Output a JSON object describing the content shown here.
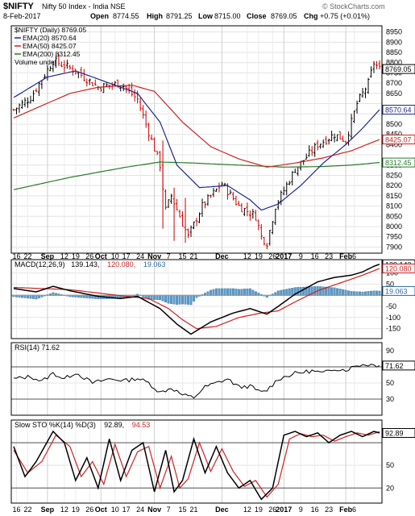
{
  "header": {
    "symbol": "$NIFTY",
    "description": "Nifty 50 Index - India  NSE",
    "date": "8-Feb-2017",
    "open_label": "Open",
    "open": "8774.55",
    "high_label": "High",
    "high": "8791.25",
    "low_label": "Low",
    "low": "8715.00",
    "close_label": "Close",
    "close": "8769.05",
    "chg_label": "Chg",
    "chg": "+0.75 (+0.01%)",
    "watermark": "© StockCharts.com",
    "up_color": "#000000",
    "down_color": "#cc0000"
  },
  "chart_data": [
    {
      "type": "candlestick",
      "panel": "price",
      "legend": [
        {
          "text": "$NIFTY (Daily) 8769.05",
          "color": "#000000"
        },
        {
          "text": "EMA(20) 8570.64",
          "color": "#1f2a8c"
        },
        {
          "text": "EMA(50) 8425.07",
          "color": "#cc2222"
        },
        {
          "text": "EMA(200) 8312.45",
          "color": "#2a7a2a"
        },
        {
          "text": "Volume undef",
          "color": "#000000"
        }
      ],
      "ylim": [
        7870,
        8980
      ],
      "yticks": [
        7900,
        7950,
        8000,
        8050,
        8100,
        8150,
        8200,
        8250,
        8300,
        8350,
        8400,
        8450,
        8500,
        8550,
        8600,
        8650,
        8700,
        8750,
        8800,
        8850,
        8900,
        8950
      ],
      "ytick_labels": [
        "7900",
        "7950",
        "8000",
        "8050",
        "8100",
        "8150",
        "8200",
        "8250",
        "8300",
        "",
        "8400",
        "8450",
        "8500",
        "",
        "",
        "8650",
        "8700",
        "8750",
        "8800",
        "8850",
        "8900",
        "8950"
      ],
      "last_value_tags": [
        {
          "value": 8769.05,
          "text": "8769.05",
          "color": "#000000"
        },
        {
          "value": 8570.64,
          "text": "8570.64",
          "color": "#1f2a8c"
        },
        {
          "value": 8425.07,
          "text": "8425.07",
          "color": "#cc2222"
        },
        {
          "value": 8312.45,
          "text": "8312.45",
          "color": "#2a7a2a"
        }
      ],
      "ohlc_anchors": [
        [
          0,
          8570
        ],
        [
          6,
          8630
        ],
        [
          14,
          8810
        ],
        [
          22,
          8760
        ],
        [
          30,
          8680
        ],
        [
          38,
          8700
        ],
        [
          44,
          8620
        ],
        [
          52,
          8300
        ],
        [
          54,
          8080
        ],
        [
          56,
          8150
        ],
        [
          62,
          7950
        ],
        [
          67,
          8100
        ],
        [
          74,
          8210
        ],
        [
          80,
          8100
        ],
        [
          86,
          8050
        ],
        [
          88,
          7950
        ],
        [
          90,
          7920
        ],
        [
          93,
          8100
        ],
        [
          100,
          8280
        ],
        [
          108,
          8400
        ],
        [
          114,
          8450
        ],
        [
          118,
          8420
        ],
        [
          122,
          8600
        ],
        [
          126,
          8700
        ],
        [
          128,
          8800
        ],
        [
          130,
          8769
        ]
      ],
      "ema20_anchors": [
        [
          0,
          8630
        ],
        [
          12,
          8730
        ],
        [
          22,
          8760
        ],
        [
          34,
          8700
        ],
        [
          44,
          8650
        ],
        [
          52,
          8510
        ],
        [
          58,
          8300
        ],
        [
          66,
          8190
        ],
        [
          76,
          8200
        ],
        [
          84,
          8130
        ],
        [
          88,
          8080
        ],
        [
          94,
          8110
        ],
        [
          102,
          8200
        ],
        [
          110,
          8310
        ],
        [
          118,
          8400
        ],
        [
          124,
          8480
        ],
        [
          130,
          8570.64
        ]
      ],
      "ema50_anchors": [
        [
          0,
          8530
        ],
        [
          10,
          8590
        ],
        [
          20,
          8650
        ],
        [
          30,
          8680
        ],
        [
          42,
          8690
        ],
        [
          50,
          8660
        ],
        [
          60,
          8510
        ],
        [
          70,
          8390
        ],
        [
          80,
          8330
        ],
        [
          90,
          8290
        ],
        [
          100,
          8310
        ],
        [
          110,
          8335
        ],
        [
          120,
          8370
        ],
        [
          130,
          8425.07
        ]
      ],
      "ema200_anchors": [
        [
          0,
          8180
        ],
        [
          20,
          8240
        ],
        [
          40,
          8290
        ],
        [
          52,
          8315
        ],
        [
          64,
          8310
        ],
        [
          80,
          8300
        ],
        [
          96,
          8290
        ],
        [
          110,
          8293
        ],
        [
          120,
          8300
        ],
        [
          130,
          8312.45
        ]
      ]
    },
    {
      "type": "line",
      "panel": "macd",
      "legend": [
        {
          "text": "MACD(12,26,9)",
          "color": "#000000"
        },
        {
          "text": "139.143,",
          "color": "#000000"
        },
        {
          "text": "120.080,",
          "color": "#cc2222"
        },
        {
          "text": "19.063",
          "color": "#2a6aa0"
        }
      ],
      "ylim": [
        -195,
        160
      ],
      "yticks": [
        -150,
        -100,
        -50,
        0,
        50,
        100
      ],
      "ytick_labels": [
        "-150",
        "-100",
        "-50",
        "",
        "50",
        "100"
      ],
      "last_value_tags": [
        {
          "value": 139.143,
          "text": "139.143",
          "color": "#000000"
        },
        {
          "value": 120.08,
          "text": "120.080",
          "color": "#cc2222"
        },
        {
          "value": 19.063,
          "text": "19.063",
          "color": "#2a6aa0"
        }
      ],
      "macd_anchors": [
        [
          0,
          30
        ],
        [
          8,
          15
        ],
        [
          14,
          40
        ],
        [
          20,
          20
        ],
        [
          30,
          -5
        ],
        [
          38,
          -15
        ],
        [
          44,
          -5
        ],
        [
          52,
          -60
        ],
        [
          58,
          -130
        ],
        [
          63,
          -175
        ],
        [
          70,
          -120
        ],
        [
          78,
          -80
        ],
        [
          84,
          -60
        ],
        [
          90,
          -85
        ],
        [
          94,
          -50
        ],
        [
          100,
          5
        ],
        [
          108,
          60
        ],
        [
          114,
          80
        ],
        [
          120,
          90
        ],
        [
          124,
          105
        ],
        [
          128,
          130
        ],
        [
          130,
          139.143
        ]
      ],
      "signal_anchors": [
        [
          0,
          35
        ],
        [
          10,
          30
        ],
        [
          20,
          25
        ],
        [
          30,
          10
        ],
        [
          40,
          -5
        ],
        [
          48,
          -15
        ],
        [
          55,
          -60
        ],
        [
          60,
          -110
        ],
        [
          65,
          -150
        ],
        [
          72,
          -140
        ],
        [
          80,
          -100
        ],
        [
          88,
          -80
        ],
        [
          94,
          -70
        ],
        [
          100,
          -30
        ],
        [
          108,
          20
        ],
        [
          116,
          55
        ],
        [
          124,
          90
        ],
        [
          130,
          120.08
        ]
      ]
    },
    {
      "type": "line",
      "panel": "rsi",
      "legend": [
        {
          "text": "RSI(14) 71.62",
          "color": "#000000"
        }
      ],
      "ylim": [
        10,
        100
      ],
      "yticks": [
        30,
        50,
        70,
        90
      ],
      "ytick_labels": [
        "30",
        "50",
        "",
        "90"
      ],
      "overbought": 70,
      "oversold": 30,
      "last_value_tags": [
        {
          "value": 71.62,
          "text": "71.62",
          "color": "#000000"
        }
      ],
      "rsi_anchors": [
        [
          0,
          55
        ],
        [
          6,
          58
        ],
        [
          10,
          52
        ],
        [
          14,
          62
        ],
        [
          18,
          55
        ],
        [
          22,
          63
        ],
        [
          28,
          50
        ],
        [
          34,
          55
        ],
        [
          40,
          53
        ],
        [
          44,
          56
        ],
        [
          48,
          50
        ],
        [
          52,
          38
        ],
        [
          56,
          44
        ],
        [
          60,
          35
        ],
        [
          64,
          32
        ],
        [
          68,
          45
        ],
        [
          72,
          50
        ],
        [
          76,
          55
        ],
        [
          80,
          45
        ],
        [
          84,
          46
        ],
        [
          88,
          38
        ],
        [
          90,
          41
        ],
        [
          94,
          55
        ],
        [
          100,
          62
        ],
        [
          106,
          65
        ],
        [
          110,
          62
        ],
        [
          114,
          68
        ],
        [
          118,
          66
        ],
        [
          122,
          72
        ],
        [
          126,
          73
        ],
        [
          130,
          71.62
        ]
      ]
    },
    {
      "type": "line",
      "panel": "stochastic",
      "legend": [
        {
          "text": "Slow STO %K(14) %D(3)",
          "color": "#000000"
        },
        {
          "text": "92.89,",
          "color": "#000000"
        },
        {
          "text": "94.53",
          "color": "#cc2222"
        }
      ],
      "ylim": [
        0,
        110
      ],
      "yticks": [
        20,
        50,
        80
      ],
      "ytick_labels": [
        "20",
        "50",
        ""
      ],
      "last_value_tags": [
        {
          "value": 92.89,
          "text": "92.89",
          "color": "#000000"
        }
      ],
      "k_anchors": [
        [
          0,
          75
        ],
        [
          4,
          35
        ],
        [
          8,
          55
        ],
        [
          14,
          95
        ],
        [
          18,
          80
        ],
        [
          22,
          30
        ],
        [
          26,
          60
        ],
        [
          30,
          20
        ],
        [
          34,
          85
        ],
        [
          38,
          30
        ],
        [
          42,
          70
        ],
        [
          46,
          80
        ],
        [
          50,
          15
        ],
        [
          54,
          70
        ],
        [
          57,
          15
        ],
        [
          60,
          30
        ],
        [
          64,
          85
        ],
        [
          68,
          40
        ],
        [
          72,
          75
        ],
        [
          76,
          40
        ],
        [
          80,
          20
        ],
        [
          84,
          30
        ],
        [
          88,
          5
        ],
        [
          92,
          20
        ],
        [
          96,
          90
        ],
        [
          100,
          95
        ],
        [
          104,
          88
        ],
        [
          108,
          93
        ],
        [
          112,
          80
        ],
        [
          116,
          90
        ],
        [
          120,
          95
        ],
        [
          124,
          88
        ],
        [
          128,
          95
        ],
        [
          130,
          92.89
        ]
      ],
      "d_anchors": [
        [
          0,
          70
        ],
        [
          5,
          40
        ],
        [
          10,
          55
        ],
        [
          15,
          90
        ],
        [
          20,
          75
        ],
        [
          24,
          35
        ],
        [
          28,
          55
        ],
        [
          32,
          25
        ],
        [
          36,
          78
        ],
        [
          40,
          35
        ],
        [
          44,
          68
        ],
        [
          48,
          75
        ],
        [
          52,
          20
        ],
        [
          56,
          62
        ],
        [
          59,
          20
        ],
        [
          62,
          32
        ],
        [
          66,
          80
        ],
        [
          70,
          42
        ],
        [
          74,
          72
        ],
        [
          78,
          42
        ],
        [
          82,
          22
        ],
        [
          86,
          30
        ],
        [
          90,
          8
        ],
        [
          94,
          25
        ],
        [
          98,
          85
        ],
        [
          102,
          92
        ],
        [
          106,
          88
        ],
        [
          110,
          90
        ],
        [
          114,
          82
        ],
        [
          118,
          88
        ],
        [
          122,
          93
        ],
        [
          126,
          90
        ],
        [
          130,
          94.53
        ]
      ]
    }
  ],
  "x_axis": {
    "num_days": 131,
    "labels": [
      {
        "i": 1,
        "text": "16"
      },
      {
        "i": 5,
        "text": "22"
      },
      {
        "i": 12,
        "text": "Sep",
        "bold": true
      },
      {
        "i": 18,
        "text": "12"
      },
      {
        "i": 22,
        "text": "19"
      },
      {
        "i": 27,
        "text": "26"
      },
      {
        "i": 31,
        "text": "Oct",
        "bold": true
      },
      {
        "i": 36,
        "text": "10"
      },
      {
        "i": 40,
        "text": "17"
      },
      {
        "i": 45,
        "text": "24"
      },
      {
        "i": 50,
        "text": "Nov",
        "bold": true
      },
      {
        "i": 55,
        "text": "7"
      },
      {
        "i": 60,
        "text": "15"
      },
      {
        "i": 64,
        "text": "21"
      },
      {
        "i": 74,
        "text": "Dec",
        "bold": true
      },
      {
        "i": 83,
        "text": "12"
      },
      {
        "i": 87,
        "text": "19"
      },
      {
        "i": 92,
        "text": "26"
      },
      {
        "i": 96,
        "text": "2017",
        "bold": true
      },
      {
        "i": 102,
        "text": "9"
      },
      {
        "i": 107,
        "text": "16"
      },
      {
        "i": 112,
        "text": "23"
      },
      {
        "i": 118,
        "text": "Feb",
        "bold": true
      },
      {
        "i": 121,
        "text": "6"
      }
    ]
  }
}
